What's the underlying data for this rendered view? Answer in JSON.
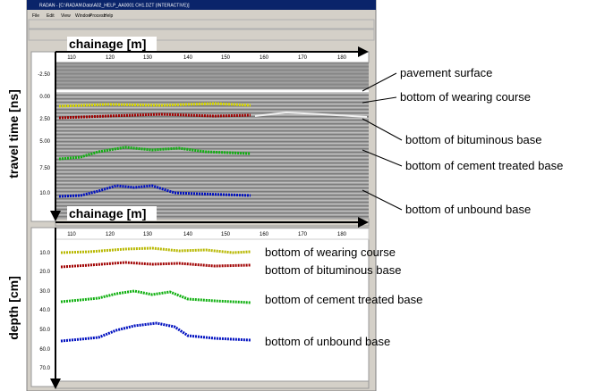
{
  "window": {
    "title": "RADAN - [C:\\RADAN\\Data\\A02_HELP_AA0001 CH1.DZT (INTERACTIVE)]",
    "menu": [
      "File",
      "Edit",
      "View",
      "Window",
      "Process",
      "Help"
    ]
  },
  "upper_panel": {
    "x_label": "chainage [m]",
    "y_label": "travel time [ns]",
    "x_ticks": [
      "110",
      "120",
      "130",
      "140",
      "150",
      "160",
      "170",
      "180"
    ],
    "y_ticks": [
      "-2.50",
      "0.00",
      "2.50",
      "5.00",
      "7.50",
      "10.0"
    ],
    "annotations": [
      "pavement surface",
      "bottom of wearing course",
      "bottom of bituminous base",
      "bottom of cement treated base",
      "bottom of unbound base"
    ]
  },
  "lower_panel": {
    "x_label": "chainage [m]",
    "y_label": "depth [cm]",
    "x_ticks": [
      "110",
      "120",
      "130",
      "140",
      "150",
      "160",
      "170",
      "180"
    ],
    "y_ticks": [
      "10.0",
      "20.0",
      "30.0",
      "40.0",
      "50.0",
      "60.0",
      "70.0"
    ],
    "annotations": [
      "bottom of wearing course",
      "bottom of bituminous base",
      "bottom of cement treated base",
      "bottom of unbound base"
    ]
  }
}
